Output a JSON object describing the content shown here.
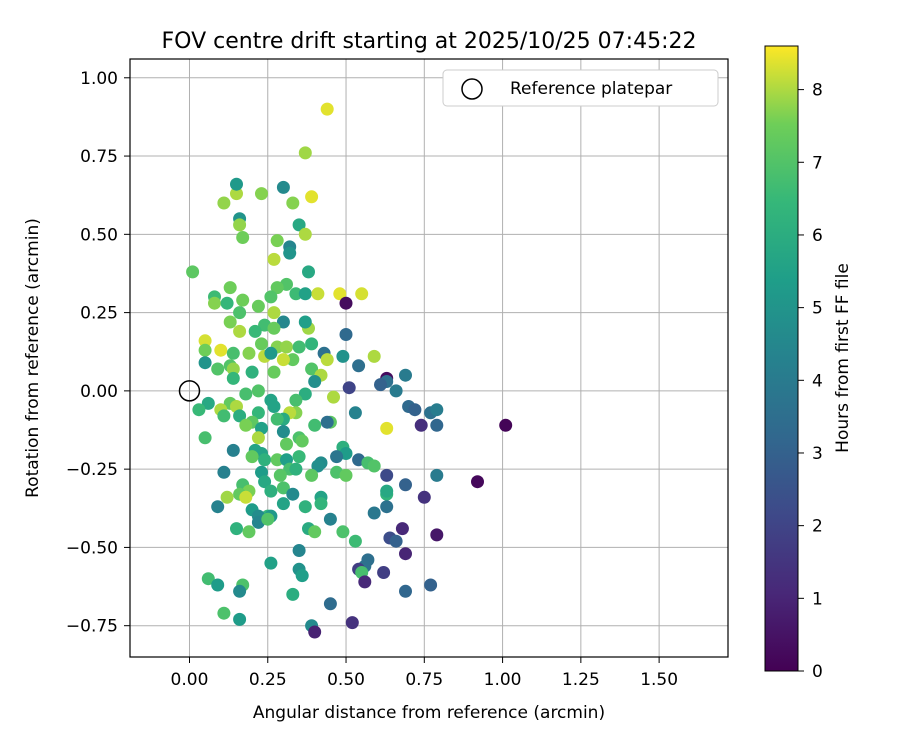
{
  "chart_data": {
    "type": "scatter",
    "title": "FOV centre drift starting at 2025/10/25 07:45:22",
    "xlabel": "Angular distance from reference (arcmin)",
    "ylabel": "Rotation from reference (arcmin)",
    "xlim": [
      -0.19,
      1.72
    ],
    "ylim": [
      -0.85,
      1.06
    ],
    "x_ticks": [
      0.0,
      0.25,
      0.5,
      0.75,
      1.0,
      1.25,
      1.5
    ],
    "x_tick_labels": [
      "0.00",
      "0.25",
      "0.50",
      "0.75",
      "1.00",
      "1.25",
      "1.50"
    ],
    "y_ticks": [
      -0.75,
      -0.5,
      -0.25,
      0.0,
      0.25,
      0.5,
      0.75,
      1.0
    ],
    "y_tick_labels": [
      "−0.75",
      "−0.50",
      "−0.25",
      "0.00",
      "0.25",
      "0.50",
      "0.75",
      "1.00"
    ],
    "grid": true,
    "legend": {
      "position": "top-right",
      "label": "Reference platepar"
    },
    "reference_point": {
      "x": 0.0,
      "y": 0.0
    },
    "colorbar": {
      "label": "Hours from first FF file",
      "min": 0,
      "max": 8.6,
      "ticks": [
        0,
        1,
        2,
        3,
        4,
        5,
        6,
        7,
        8
      ],
      "tick_labels": [
        "0",
        "1",
        "2",
        "3",
        "4",
        "5",
        "6",
        "7",
        "8"
      ],
      "colormap": "viridis"
    },
    "points": [
      [
        0.44,
        0.9,
        8.4
      ],
      [
        0.37,
        0.76,
        7.9
      ],
      [
        0.39,
        0.62,
        8.4
      ],
      [
        0.23,
        0.63,
        7.7
      ],
      [
        0.15,
        0.63,
        8.0
      ],
      [
        0.11,
        0.6,
        7.8
      ],
      [
        0.3,
        0.65,
        4.6
      ],
      [
        0.15,
        0.66,
        5.2
      ],
      [
        0.33,
        0.6,
        7.7
      ],
      [
        0.16,
        0.55,
        5.0
      ],
      [
        0.16,
        0.53,
        7.8
      ],
      [
        0.35,
        0.53,
        5.8
      ],
      [
        0.37,
        0.5,
        8.0
      ],
      [
        0.17,
        0.49,
        7.5
      ],
      [
        0.28,
        0.48,
        7.6
      ],
      [
        0.32,
        0.46,
        4.4
      ],
      [
        0.32,
        0.44,
        5.0
      ],
      [
        0.27,
        0.42,
        8.1
      ],
      [
        0.38,
        0.38,
        5.8
      ],
      [
        0.01,
        0.38,
        7.2
      ],
      [
        0.31,
        0.34,
        7.0
      ],
      [
        0.28,
        0.33,
        7.3
      ],
      [
        0.13,
        0.33,
        7.5
      ],
      [
        0.08,
        0.3,
        6.6
      ],
      [
        0.08,
        0.28,
        7.7
      ],
      [
        0.17,
        0.29,
        7.5
      ],
      [
        0.34,
        0.31,
        6.6
      ],
      [
        0.37,
        0.31,
        5.5
      ],
      [
        0.26,
        0.3,
        7.0
      ],
      [
        0.41,
        0.31,
        8.2
      ],
      [
        0.48,
        0.31,
        8.4
      ],
      [
        0.55,
        0.31,
        8.3
      ],
      [
        0.5,
        0.28,
        0.3
      ],
      [
        0.12,
        0.28,
        6.4
      ],
      [
        0.22,
        0.27,
        7.4
      ],
      [
        0.27,
        0.25,
        8.0
      ],
      [
        0.16,
        0.25,
        6.9
      ],
      [
        0.13,
        0.22,
        7.6
      ],
      [
        0.3,
        0.22,
        4.5
      ],
      [
        0.24,
        0.21,
        6.7
      ],
      [
        0.27,
        0.2,
        7.4
      ],
      [
        0.38,
        0.2,
        7.9
      ],
      [
        0.37,
        0.22,
        5.4
      ],
      [
        0.16,
        0.19,
        8.0
      ],
      [
        0.21,
        0.19,
        6.5
      ],
      [
        0.5,
        0.18,
        3.3
      ],
      [
        0.05,
        0.16,
        8.3
      ],
      [
        0.39,
        0.15,
        6.3
      ],
      [
        0.28,
        0.14,
        7.7
      ],
      [
        0.23,
        0.15,
        7.4
      ],
      [
        0.31,
        0.14,
        7.8
      ],
      [
        0.35,
        0.14,
        6.7
      ],
      [
        0.05,
        0.13,
        7.5
      ],
      [
        0.1,
        0.13,
        8.4
      ],
      [
        0.19,
        0.12,
        7.7
      ],
      [
        0.14,
        0.12,
        6.8
      ],
      [
        0.24,
        0.11,
        8.1
      ],
      [
        0.43,
        0.12,
        3.6
      ],
      [
        0.26,
        0.12,
        5.2
      ],
      [
        0.49,
        0.11,
        4.9
      ],
      [
        0.33,
        0.1,
        7.3
      ],
      [
        0.3,
        0.1,
        8.2
      ],
      [
        0.44,
        0.1,
        8.1
      ],
      [
        0.59,
        0.11,
        8.0
      ],
      [
        0.05,
        0.09,
        5.0
      ],
      [
        0.13,
        0.08,
        7.0
      ],
      [
        0.39,
        0.07,
        7.0
      ],
      [
        0.54,
        0.08,
        3.5
      ],
      [
        0.09,
        0.07,
        7.0
      ],
      [
        0.14,
        0.07,
        7.8
      ],
      [
        0.27,
        0.06,
        7.4
      ],
      [
        0.2,
        0.06,
        6.2
      ],
      [
        0.14,
        0.04,
        6.4
      ],
      [
        0.42,
        0.05,
        8.0
      ],
      [
        0.4,
        0.03,
        4.8
      ],
      [
        0.63,
        0.04,
        0.3
      ],
      [
        0.63,
        0.03,
        3.6
      ],
      [
        0.61,
        0.02,
        3.0
      ],
      [
        0.69,
        0.05,
        4.0
      ],
      [
        0.51,
        0.01,
        2.0
      ],
      [
        0.66,
        0.0,
        4.0
      ],
      [
        0.22,
        0.0,
        7.0
      ],
      [
        0.18,
        -0.01,
        6.8
      ],
      [
        0.37,
        -0.01,
        6.0
      ],
      [
        0.46,
        -0.02,
        8.0
      ],
      [
        0.06,
        -0.04,
        5.8
      ],
      [
        0.13,
        -0.04,
        7.3
      ],
      [
        0.26,
        -0.03,
        5.6
      ],
      [
        0.34,
        -0.03,
        6.8
      ],
      [
        0.15,
        -0.05,
        8.0
      ],
      [
        0.27,
        -0.05,
        5.6
      ],
      [
        0.53,
        -0.07,
        4.3
      ],
      [
        0.7,
        -0.05,
        3.3
      ],
      [
        0.72,
        -0.06,
        3.0
      ],
      [
        0.03,
        -0.06,
        6.5
      ],
      [
        0.1,
        -0.06,
        8.0
      ],
      [
        0.22,
        -0.07,
        6.4
      ],
      [
        0.34,
        -0.07,
        7.7
      ],
      [
        0.16,
        -0.08,
        6.0
      ],
      [
        0.32,
        -0.07,
        8.1
      ],
      [
        0.77,
        -0.07,
        3.6
      ],
      [
        0.79,
        -0.06,
        4.1
      ],
      [
        0.11,
        -0.08,
        6.7
      ],
      [
        0.3,
        -0.09,
        5.9
      ],
      [
        0.28,
        -0.09,
        6.7
      ],
      [
        0.45,
        -0.1,
        7.2
      ],
      [
        0.44,
        -0.1,
        3.5
      ],
      [
        0.4,
        -0.11,
        6.7
      ],
      [
        0.2,
        -0.1,
        7.2
      ],
      [
        0.18,
        -0.11,
        7.6
      ],
      [
        0.23,
        -0.12,
        5.5
      ],
      [
        0.63,
        -0.12,
        8.4
      ],
      [
        0.74,
        -0.11,
        1.3
      ],
      [
        0.79,
        -0.11,
        3.2
      ],
      [
        1.01,
        -0.11,
        0.1
      ],
      [
        0.05,
        -0.15,
        6.8
      ],
      [
        0.22,
        -0.15,
        8.0
      ],
      [
        0.35,
        -0.15,
        6.9
      ],
      [
        0.36,
        -0.16,
        7.3
      ],
      [
        0.3,
        -0.13,
        4.7
      ],
      [
        0.31,
        -0.17,
        7.3
      ],
      [
        0.49,
        -0.18,
        6.1
      ],
      [
        0.21,
        -0.19,
        5.6
      ],
      [
        0.14,
        -0.19,
        4.2
      ],
      [
        0.5,
        -0.2,
        5.3
      ],
      [
        0.23,
        -0.2,
        5.6
      ],
      [
        0.2,
        -0.21,
        7.3
      ],
      [
        0.24,
        -0.22,
        6.2
      ],
      [
        0.28,
        -0.22,
        7.3
      ],
      [
        0.31,
        -0.22,
        5.4
      ],
      [
        0.35,
        -0.21,
        6.5
      ],
      [
        0.47,
        -0.21,
        3.8
      ],
      [
        0.54,
        -0.22,
        3.3
      ],
      [
        0.42,
        -0.23,
        4.7
      ],
      [
        0.57,
        -0.23,
        6.8
      ],
      [
        0.41,
        -0.24,
        4.8
      ],
      [
        0.59,
        -0.24,
        7.0
      ],
      [
        0.11,
        -0.26,
        4.2
      ],
      [
        0.23,
        -0.26,
        5.3
      ],
      [
        0.32,
        -0.25,
        6.8
      ],
      [
        0.34,
        -0.25,
        6.2
      ],
      [
        0.47,
        -0.26,
        6.9
      ],
      [
        0.5,
        -0.27,
        7.3
      ],
      [
        0.29,
        -0.27,
        7.1
      ],
      [
        0.39,
        -0.27,
        7.2
      ],
      [
        0.63,
        -0.27,
        2.2
      ],
      [
        0.79,
        -0.27,
        4.0
      ],
      [
        0.92,
        -0.29,
        0.2
      ],
      [
        0.24,
        -0.29,
        5.8
      ],
      [
        0.3,
        -0.31,
        6.9
      ],
      [
        0.17,
        -0.3,
        6.8
      ],
      [
        0.19,
        -0.32,
        7.6
      ],
      [
        0.16,
        -0.33,
        7.3
      ],
      [
        0.26,
        -0.32,
        6.1
      ],
      [
        0.33,
        -0.33,
        4.6
      ],
      [
        0.12,
        -0.34,
        7.9
      ],
      [
        0.18,
        -0.34,
        8.2
      ],
      [
        0.42,
        -0.34,
        5.6
      ],
      [
        0.63,
        -0.33,
        6.3
      ],
      [
        0.63,
        -0.32,
        5.8
      ],
      [
        0.3,
        -0.36,
        5.6
      ],
      [
        0.42,
        -0.36,
        6.3
      ],
      [
        0.69,
        -0.3,
        3.0
      ],
      [
        0.75,
        -0.34,
        1.4
      ],
      [
        0.09,
        -0.37,
        4.3
      ],
      [
        0.2,
        -0.38,
        5.3
      ],
      [
        0.25,
        -0.4,
        6.4
      ],
      [
        0.37,
        -0.37,
        6.2
      ],
      [
        0.63,
        -0.37,
        3.6
      ],
      [
        0.59,
        -0.39,
        3.9
      ],
      [
        0.22,
        -0.4,
        4.7
      ],
      [
        0.26,
        -0.4,
        5.2
      ],
      [
        0.22,
        -0.42,
        4.4
      ],
      [
        0.45,
        -0.41,
        4.3
      ],
      [
        0.25,
        -0.41,
        7.0
      ],
      [
        0.49,
        -0.45,
        6.9
      ],
      [
        0.15,
        -0.44,
        6.2
      ],
      [
        0.19,
        -0.45,
        7.3
      ],
      [
        0.38,
        -0.44,
        5.9
      ],
      [
        0.4,
        -0.45,
        7.3
      ],
      [
        0.68,
        -0.44,
        1.1
      ],
      [
        0.79,
        -0.46,
        0.6
      ],
      [
        0.64,
        -0.47,
        2.3
      ],
      [
        0.53,
        -0.48,
        6.6
      ],
      [
        0.66,
        -0.48,
        3.0
      ],
      [
        0.69,
        -0.52,
        1.0
      ],
      [
        0.35,
        -0.51,
        4.4
      ],
      [
        0.57,
        -0.54,
        3.5
      ],
      [
        0.26,
        -0.55,
        5.5
      ],
      [
        0.56,
        -0.56,
        3.6
      ],
      [
        0.35,
        -0.57,
        4.9
      ],
      [
        0.54,
        -0.57,
        1.8
      ],
      [
        0.55,
        -0.58,
        6.8
      ],
      [
        0.62,
        -0.58,
        1.8
      ],
      [
        0.36,
        -0.59,
        5.4
      ],
      [
        0.06,
        -0.6,
        6.7
      ],
      [
        0.56,
        -0.61,
        1.1
      ],
      [
        0.09,
        -0.62,
        5.3
      ],
      [
        0.17,
        -0.62,
        6.9
      ],
      [
        0.16,
        -0.64,
        4.6
      ],
      [
        0.77,
        -0.62,
        3.0
      ],
      [
        0.69,
        -0.64,
        3.2
      ],
      [
        0.33,
        -0.65,
        6.0
      ],
      [
        0.45,
        -0.68,
        3.4
      ],
      [
        0.11,
        -0.71,
        6.9
      ],
      [
        0.16,
        -0.73,
        5.3
      ],
      [
        0.52,
        -0.74,
        1.4
      ],
      [
        0.39,
        -0.75,
        4.6
      ],
      [
        0.4,
        -0.77,
        0.9
      ]
    ]
  }
}
